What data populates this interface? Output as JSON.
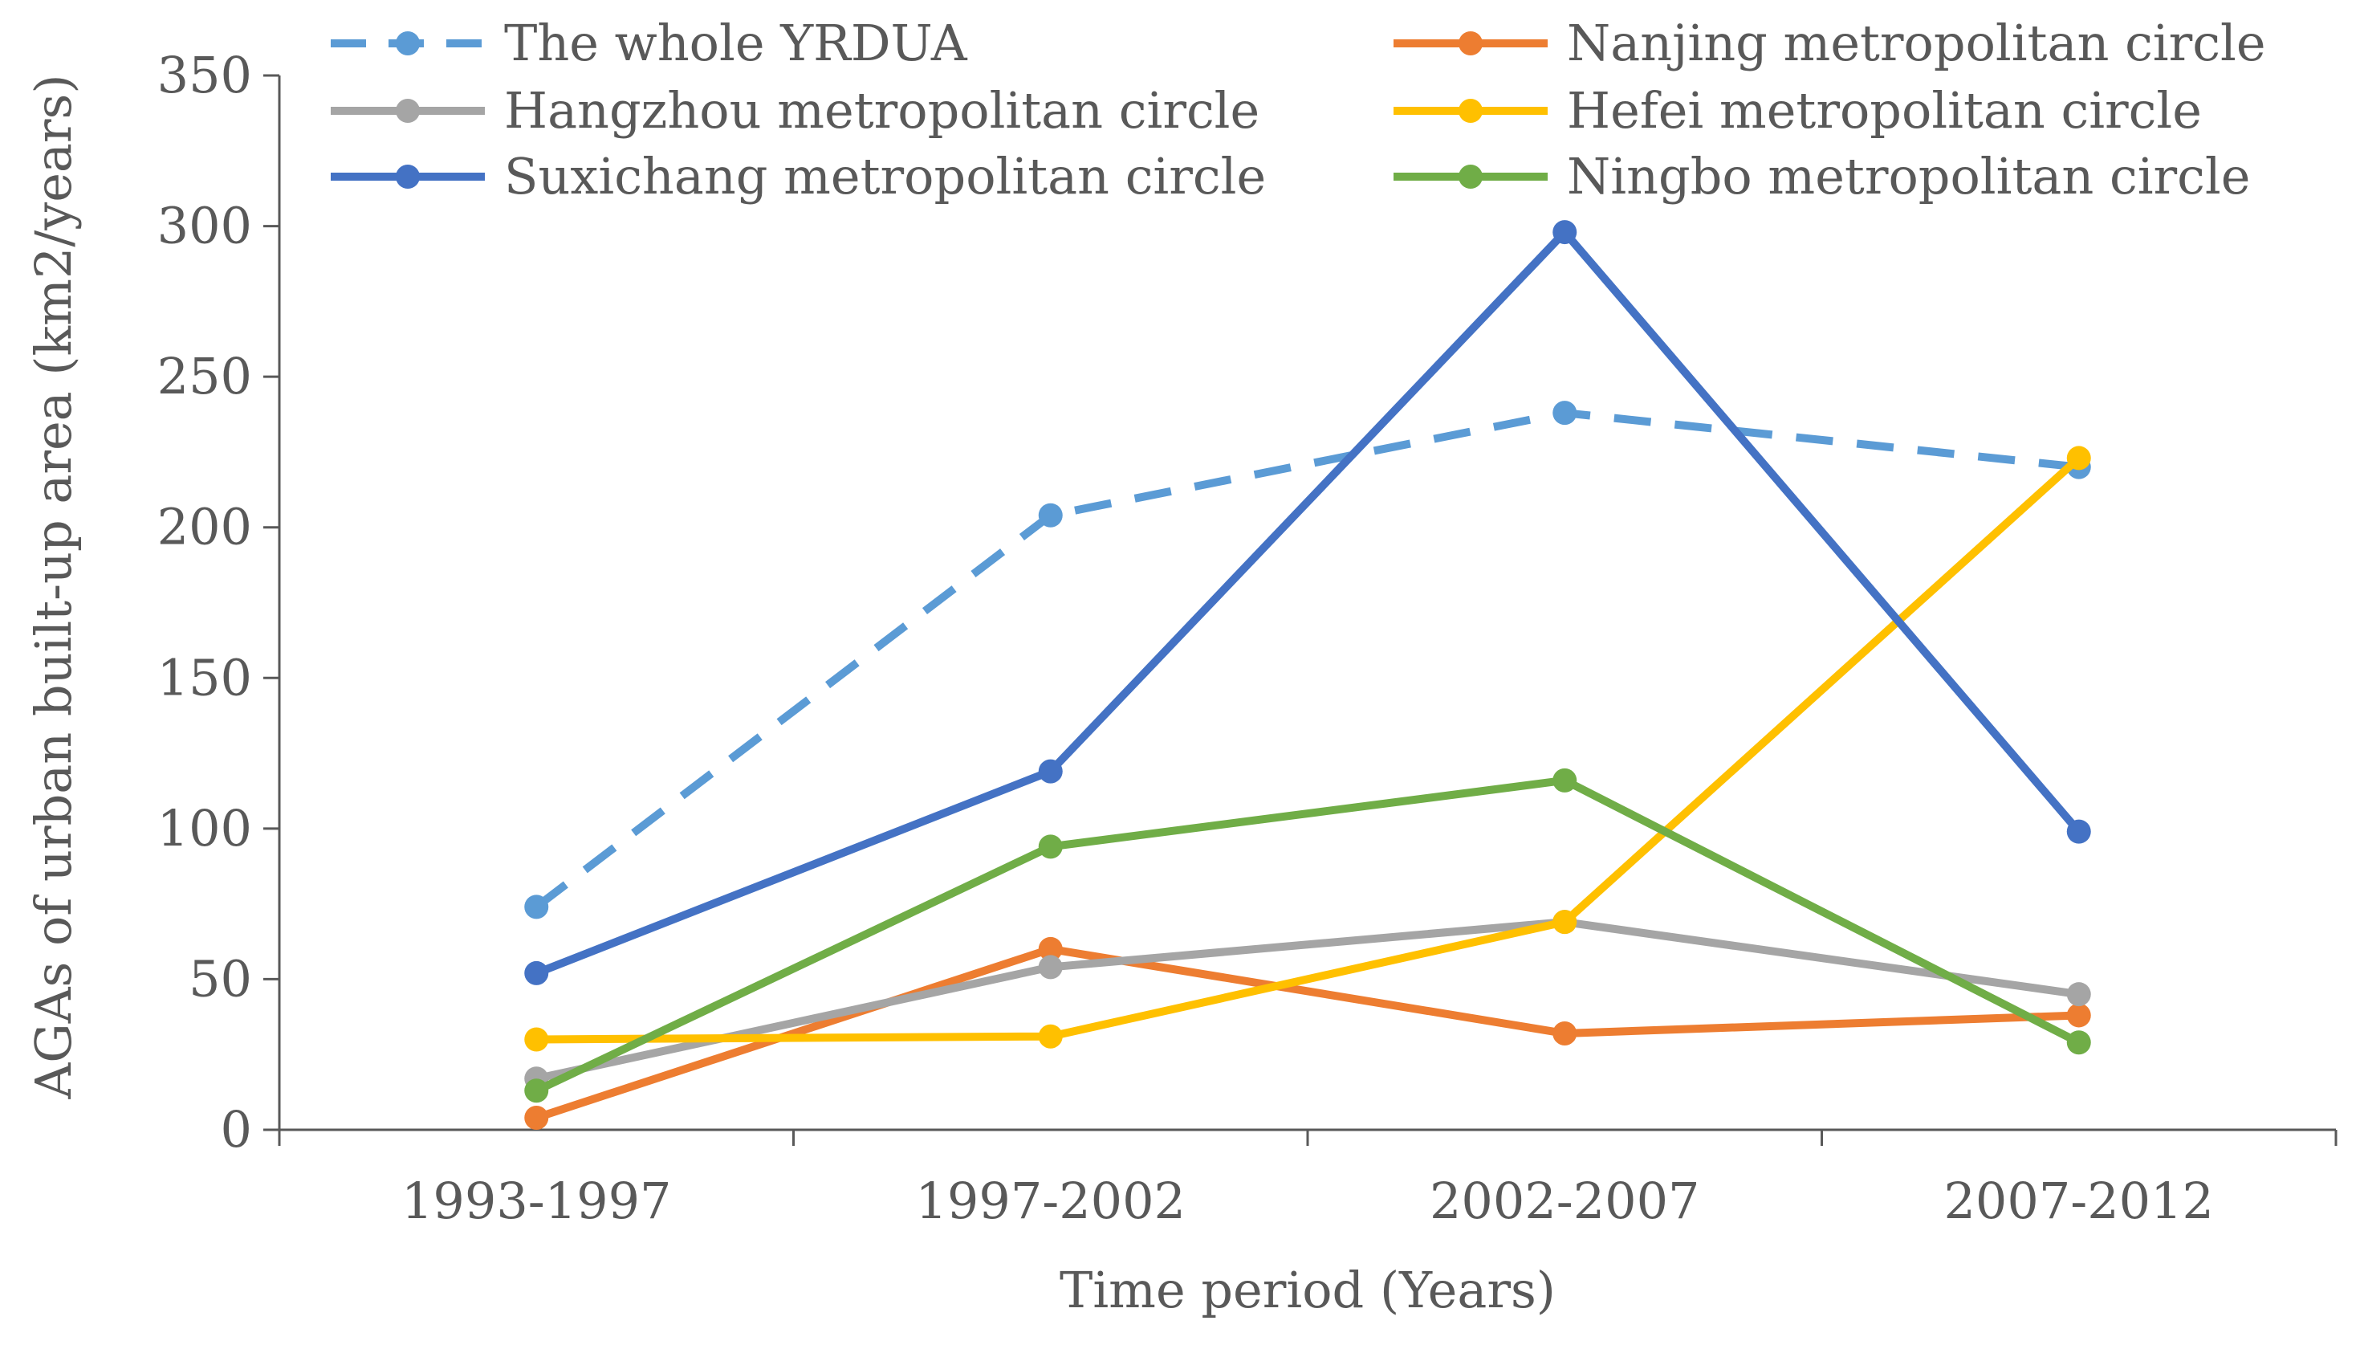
{
  "chart_data": {
    "type": "line",
    "title": "",
    "xlabel": "Time period (Years)",
    "ylabel": "AGAs of urban built-up area (km2/years)",
    "ylim": [
      0,
      350
    ],
    "yticks": [
      0,
      50,
      100,
      150,
      200,
      250,
      300,
      350
    ],
    "grid": false,
    "legend_position": "top",
    "categories": [
      "1993-1997",
      "1997-2002",
      "2002-2007",
      "2007-2012"
    ],
    "series": [
      {
        "name": "The whole YRDUA",
        "color": "#5B9BD5",
        "dashed": true,
        "values": [
          74,
          204,
          238,
          220
        ]
      },
      {
        "name": "Nanjing metropolitan circle",
        "color": "#ED7D31",
        "dashed": false,
        "values": [
          4,
          60,
          32,
          38
        ]
      },
      {
        "name": "Hangzhou metropolitan circle",
        "color": "#A5A5A5",
        "dashed": false,
        "values": [
          17,
          54,
          69,
          45
        ]
      },
      {
        "name": "Hefei metropolitan circle",
        "color": "#FFC000",
        "dashed": false,
        "values": [
          30,
          31,
          69,
          223
        ]
      },
      {
        "name": "Suxichang metropolitan circle",
        "color": "#4472C4",
        "dashed": false,
        "values": [
          52,
          119,
          298,
          99
        ]
      },
      {
        "name": "Ningbo metropolitan circle",
        "color": "#70AD47",
        "dashed": false,
        "values": [
          13,
          94,
          116,
          29
        ]
      }
    ]
  }
}
